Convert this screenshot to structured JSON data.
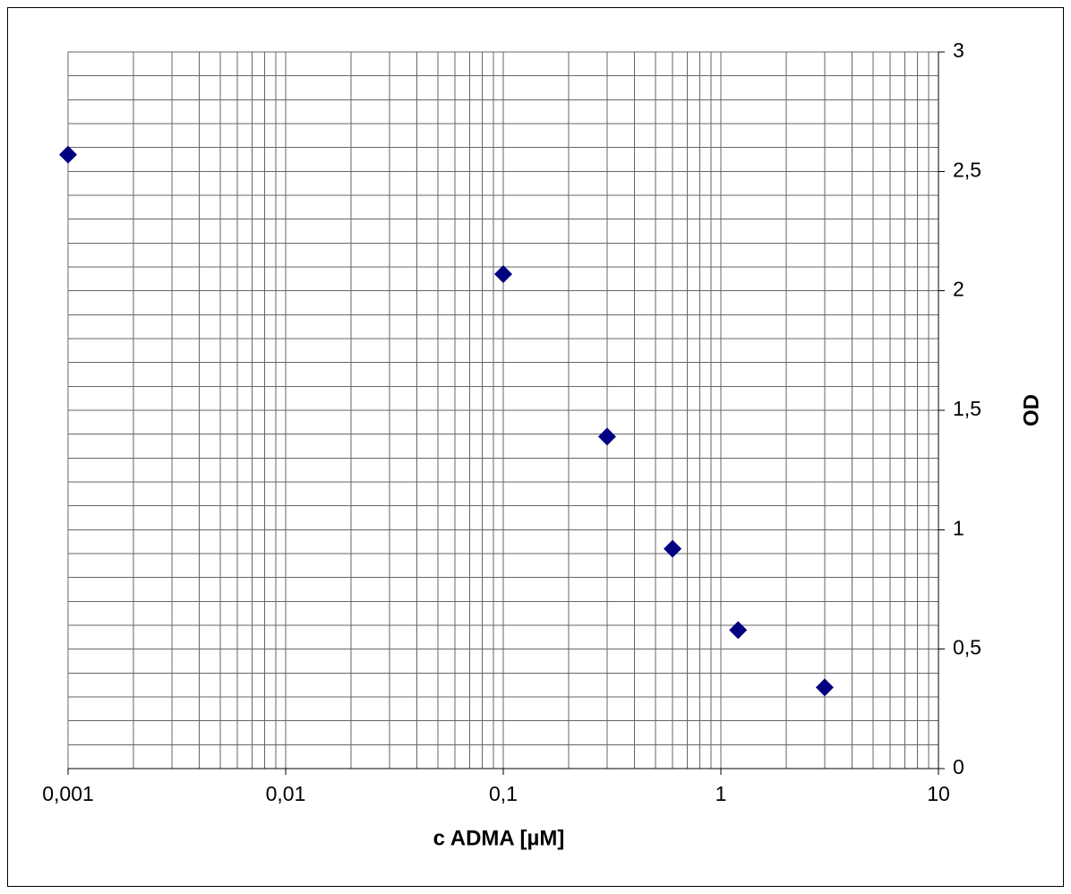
{
  "chart_data": {
    "type": "scatter",
    "x_label": "c ADMA [µM]",
    "y_label": "OD",
    "x_log": true,
    "y_axis_side": "right",
    "grid": true,
    "minor_grid": true,
    "xlim": [
      0.001,
      10
    ],
    "ylim": [
      0,
      3
    ],
    "xticks": [
      {
        "value": 0.001,
        "label": "0,001"
      },
      {
        "value": 0.01,
        "label": "0,01"
      },
      {
        "value": 0.1,
        "label": "0,1"
      },
      1,
      10
    ],
    "yticks": [
      0,
      {
        "value": 0.5,
        "label": "0,5"
      },
      1,
      {
        "value": 1.5,
        "label": "1,5"
      },
      2,
      {
        "value": 2.5,
        "label": "2,5"
      },
      3
    ],
    "series": [
      {
        "color": "#000080",
        "marker": "diamond",
        "x": [
          0.001,
          0.1,
          0.3,
          0.6,
          1.2,
          3
        ],
        "values": [
          2.57,
          2.07,
          1.39,
          0.92,
          0.58,
          0.34
        ]
      }
    ]
  }
}
